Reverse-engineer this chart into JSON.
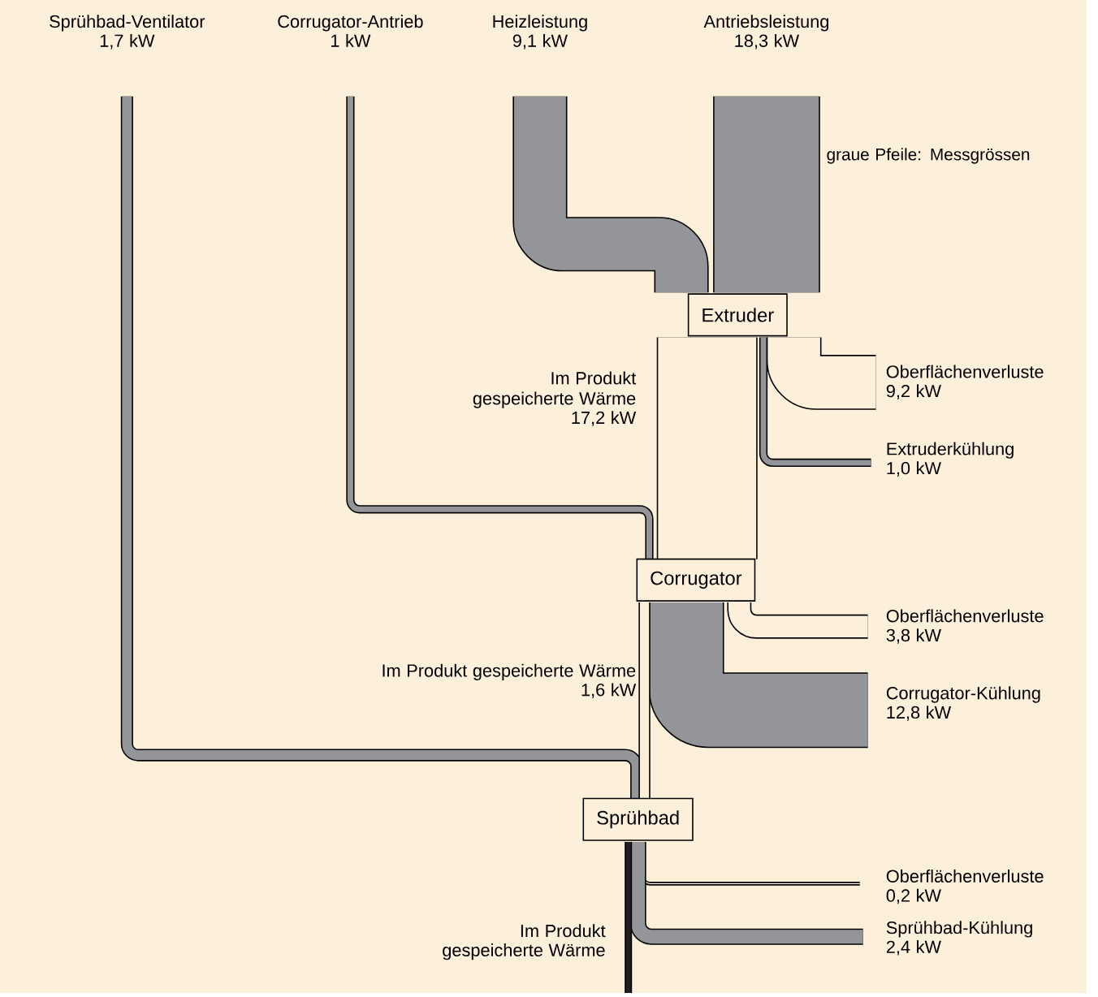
{
  "chart_data": {
    "type": "other",
    "categories": [
      "Sprühbad-Ventilator",
      "Corrugator-Antrieb",
      "Heizleistung",
      "Antriebsleistung",
      "Oberflächenverluste",
      "Extruderkühlung",
      "Im Produkt gespeicherte Wärme",
      "Oberflächenverluste",
      "Corrugator-Kühlung",
      "Im Produkt gespeicherte Wärme",
      "Oberflächenverluste",
      "Sprühbad-Kühlung",
      "Im Produkt gespeicherte Wärme"
    ],
    "values": [
      1.7,
      1,
      9.1,
      18.3,
      9.2,
      1.0,
      17.2,
      3.8,
      12.8,
      1.6,
      0.2,
      2.4,
      null
    ],
    "value_labels": [
      "1,7 kW",
      "1 kW",
      "9,1 kW",
      "18,3 kW",
      "9,2 kW",
      "1,0 kW",
      "17,2 kW",
      "3,8 kW",
      "12,8 kW",
      "1,6 kW",
      "0,2 kW",
      "2,4 kW",
      null
    ],
    "colors": [
      "#939598",
      "#939598",
      "#939598",
      "#939598",
      "#fdf0da",
      "#939598",
      "#fdf0da",
      "#fdf0da",
      "#939598",
      "#fdf0da",
      "#fdf0da",
      "#939598",
      "#231f20"
    ],
    "annotations": [
      "Extruder",
      "Corrugator",
      "Sprühbad",
      "graue Pfeile: Messgrössen"
    ]
  }
}
